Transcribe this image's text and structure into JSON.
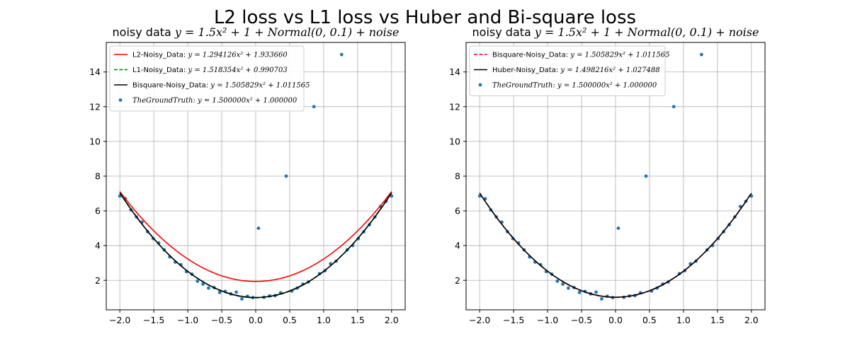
{
  "figure": {
    "title": "L2 loss vs L1 loss vs Huber and Bi-square loss"
  },
  "chart_data": [
    {
      "type": "scatter",
      "title_prefix": "noisy data ",
      "title_math": "y = 1.5x² + 1 + Normal(0, 0.1) + noise",
      "xlim": [
        -2.2,
        2.2
      ],
      "ylim": [
        0.3,
        15.7
      ],
      "xticks": [
        -2.0,
        -1.5,
        -1.0,
        -0.5,
        0.0,
        0.5,
        1.0,
        1.5,
        2.0
      ],
      "xtick_labels": [
        "−2.0",
        "−1.5",
        "−1.0",
        "−0.5",
        "0.0",
        "0.5",
        "1.0",
        "1.5",
        "2.0"
      ],
      "yticks": [
        2,
        4,
        6,
        8,
        10,
        12,
        14
      ],
      "ytick_labels": [
        "2",
        "4",
        "6",
        "8",
        "10",
        "12",
        "14"
      ],
      "grid": true,
      "legend_position": "top-left",
      "fits": [
        {
          "name": "L2-Noisy_Data",
          "eq": "y = 1.294126x² + 1.933660",
          "a": 1.294126,
          "b": 1.93366,
          "color": "#ff0000",
          "dash": "solid"
        },
        {
          "name": "L1-Noisy_Data",
          "eq": "y = 1.518354x² + 0.990703",
          "a": 1.518354,
          "b": 0.990703,
          "color": "#008000",
          "dash": "dashed"
        },
        {
          "name": "Bisquare-Noisy_Data",
          "eq": "y = 1.505829x² + 1.011565",
          "a": 1.505829,
          "b": 1.011565,
          "color": "#000000",
          "dash": "solid"
        }
      ],
      "scatter": {
        "name": "TheGroundTruth",
        "eq": "y = 1.500000x² + 1.000000",
        "color": "#1f77b4",
        "x": [
          -2.0,
          -1.918,
          -1.837,
          -1.755,
          -1.673,
          -1.592,
          -1.51,
          -1.429,
          -1.347,
          -1.265,
          -1.184,
          -1.102,
          -1.02,
          -0.939,
          -0.857,
          -0.776,
          -0.694,
          -0.612,
          -0.531,
          -0.449,
          -0.367,
          -0.286,
          -0.204,
          -0.122,
          -0.041,
          0.041,
          0.122,
          0.204,
          0.286,
          0.367,
          0.449,
          0.531,
          0.612,
          0.694,
          0.776,
          0.857,
          0.939,
          1.02,
          1.102,
          1.184,
          1.265,
          1.347,
          1.429,
          1.51,
          1.592,
          1.673,
          1.755,
          1.837,
          1.918,
          2.0
        ],
        "y": [
          6.85,
          6.7,
          6.05,
          5.65,
          5.35,
          4.8,
          4.4,
          4.15,
          3.75,
          3.35,
          3.05,
          2.9,
          2.5,
          2.35,
          1.95,
          1.78,
          1.55,
          1.58,
          1.3,
          1.36,
          1.22,
          1.32,
          0.93,
          1.08,
          1.0,
          5.0,
          1.02,
          1.1,
          1.12,
          1.28,
          8.0,
          1.38,
          1.55,
          1.78,
          1.9,
          12.0,
          2.38,
          2.55,
          2.95,
          3.1,
          15.0,
          3.75,
          4.0,
          4.4,
          4.8,
          5.2,
          5.65,
          6.25,
          6.55,
          6.85
        ]
      }
    },
    {
      "type": "scatter",
      "title_prefix": "noisy data ",
      "title_math": "y = 1.5x² + 1 + Normal(0, 0.1) + noise",
      "xlim": [
        -2.2,
        2.2
      ],
      "ylim": [
        0.3,
        15.7
      ],
      "xticks": [
        -2.0,
        -1.5,
        -1.0,
        -0.5,
        0.0,
        0.5,
        1.0,
        1.5,
        2.0
      ],
      "xtick_labels": [
        "−2.0",
        "−1.5",
        "−1.0",
        "−0.5",
        "0.0",
        "0.5",
        "1.0",
        "1.5",
        "2.0"
      ],
      "yticks": [
        2,
        4,
        6,
        8,
        10,
        12,
        14
      ],
      "ytick_labels": [
        "2",
        "4",
        "6",
        "8",
        "10",
        "12",
        "14"
      ],
      "grid": true,
      "legend_position": "top-left",
      "fits": [
        {
          "name": "Bisquare-Noisy_Data",
          "eq": "y = 1.505829x² + 1.011565",
          "a": 1.505829,
          "b": 1.011565,
          "color": "#ff0000",
          "dash": "dashed"
        },
        {
          "name": "Huber-Noisy_Data",
          "eq": "y = 1.498216x² + 1.027488",
          "a": 1.498216,
          "b": 1.027488,
          "color": "#000000",
          "dash": "solid"
        }
      ],
      "scatter": {
        "name": "TheGroundTruth",
        "eq": "y = 1.500000x² + 1.000000",
        "color": "#1f77b4",
        "x": [
          -2.0,
          -1.918,
          -1.837,
          -1.755,
          -1.673,
          -1.592,
          -1.51,
          -1.429,
          -1.347,
          -1.265,
          -1.184,
          -1.102,
          -1.02,
          -0.939,
          -0.857,
          -0.776,
          -0.694,
          -0.612,
          -0.531,
          -0.449,
          -0.367,
          -0.286,
          -0.204,
          -0.122,
          -0.041,
          0.041,
          0.122,
          0.204,
          0.286,
          0.367,
          0.449,
          0.531,
          0.612,
          0.694,
          0.776,
          0.857,
          0.939,
          1.02,
          1.102,
          1.184,
          1.265,
          1.347,
          1.429,
          1.51,
          1.592,
          1.673,
          1.755,
          1.837,
          1.918,
          2.0
        ],
        "y": [
          6.85,
          6.7,
          6.05,
          5.65,
          5.35,
          4.8,
          4.4,
          4.15,
          3.75,
          3.35,
          3.05,
          2.9,
          2.5,
          2.35,
          1.95,
          1.78,
          1.55,
          1.58,
          1.3,
          1.36,
          1.22,
          1.32,
          0.93,
          1.08,
          1.0,
          5.0,
          1.02,
          1.1,
          1.12,
          1.28,
          8.0,
          1.38,
          1.55,
          1.78,
          1.9,
          12.0,
          2.38,
          2.55,
          2.95,
          3.1,
          15.0,
          3.75,
          4.0,
          4.4,
          4.8,
          5.2,
          5.65,
          6.25,
          6.55,
          6.85
        ]
      }
    }
  ]
}
